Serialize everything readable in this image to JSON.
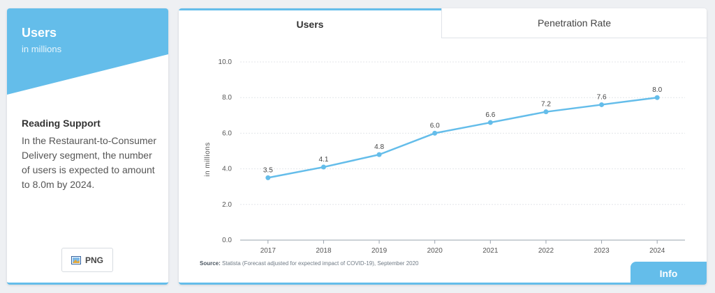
{
  "sidebar": {
    "title": "Users",
    "subtitle": "in millions",
    "reading_title": "Reading Support",
    "reading_text": "In the Restaurant-to-Consumer Delivery segment, the number of users is expected to amount to 8.0m by 2024.",
    "png_label": "PNG",
    "png_icon": "image-icon"
  },
  "tabs": {
    "users": "Users",
    "penetration": "Penetration Rate"
  },
  "source": {
    "label": "Source:",
    "text": " Statista (Forecast adjusted for expected impact of COVID-19), September 2020"
  },
  "info_label": "Info",
  "colors": {
    "accent": "#64bdea",
    "line": "#64bdea"
  },
  "chart_data": {
    "type": "line",
    "x": [
      "2017",
      "2018",
      "2019",
      "2020",
      "2021",
      "2022",
      "2023",
      "2024"
    ],
    "series": [
      {
        "values": [
          3.5,
          4.1,
          4.8,
          6.0,
          6.6,
          7.2,
          7.6,
          8.0
        ]
      }
    ],
    "data_labels": [
      "3.5",
      "4.1",
      "4.8",
      "6.0",
      "6.6",
      "7.2",
      "7.6",
      "8.0"
    ],
    "y_ticks": [
      "0.0",
      "2.0",
      "4.0",
      "6.0",
      "8.0",
      "10.0"
    ],
    "ylabel": "in millions",
    "xlabel": "",
    "ylim": [
      0,
      10
    ],
    "grid": true
  }
}
